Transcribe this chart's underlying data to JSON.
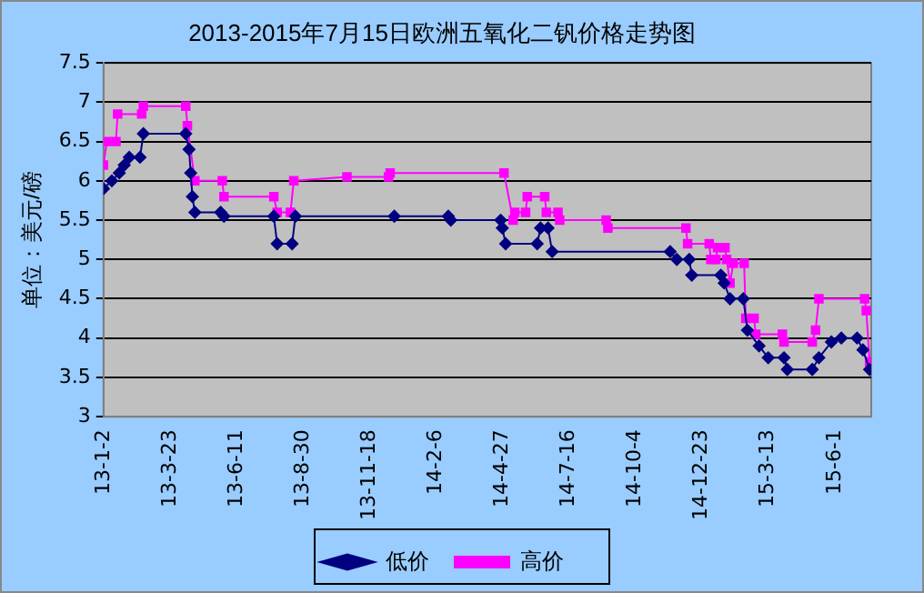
{
  "chart_data": {
    "type": "line",
    "title": "2013-2015年7月15日欧洲五氧化二钒价格走势图",
    "ylabel": "单位：美元/磅",
    "xlim": [
      "2013-01-02",
      "2015-07-15"
    ],
    "xticks": [
      {
        "value": "2013-01-02",
        "label": "13-1-2"
      },
      {
        "value": "2013-03-23",
        "label": "13-3-23"
      },
      {
        "value": "2013-06-11",
        "label": "13-6-11"
      },
      {
        "value": "2013-08-30",
        "label": "13-8-30"
      },
      {
        "value": "2013-11-18",
        "label": "13-11-18"
      },
      {
        "value": "2014-02-06",
        "label": "14-2-6"
      },
      {
        "value": "2014-04-27",
        "label": "14-4-27"
      },
      {
        "value": "2014-07-16",
        "label": "14-7-16"
      },
      {
        "value": "2014-10-04",
        "label": "14-10-4"
      },
      {
        "value": "2014-12-23",
        "label": "14-12-23"
      },
      {
        "value": "2015-03-13",
        "label": "15-3-13"
      },
      {
        "value": "2015-06-01",
        "label": "15-6-1"
      }
    ],
    "ylim": [
      3,
      7.5
    ],
    "yticks": [
      3,
      3.5,
      4,
      4.5,
      5,
      5.5,
      6,
      6.5,
      7,
      7.5
    ],
    "grid": "y",
    "legend": "bottom",
    "series": [
      {
        "name": "低价",
        "color": "#000080",
        "marker": "diamond",
        "x": [
          "2013-01-02",
          "2013-01-12",
          "2013-01-21",
          "2013-01-27",
          "2013-02-02",
          "2013-02-15",
          "2013-02-19",
          "2013-04-11",
          "2013-04-15",
          "2013-04-17",
          "2013-04-19",
          "2013-04-22",
          "2013-05-23",
          "2013-05-27",
          "2013-07-26",
          "2013-07-30",
          "2013-08-17",
          "2013-08-21",
          "2013-12-18",
          "2014-02-21",
          "2014-02-24",
          "2014-04-25",
          "2014-04-27",
          "2014-05-01",
          "2014-06-08",
          "2014-06-12",
          "2014-06-21",
          "2014-06-26",
          "2014-11-15",
          "2014-11-23",
          "2014-12-08",
          "2014-12-11",
          "2015-01-15",
          "2015-01-19",
          "2015-01-26",
          "2015-02-11",
          "2015-02-16",
          "2015-03-02",
          "2015-03-13",
          "2015-04-01",
          "2015-04-05",
          "2015-05-05",
          "2015-05-13",
          "2015-05-28",
          "2015-06-09",
          "2015-06-28",
          "2015-07-05",
          "2015-07-13"
        ],
        "values": [
          5.9,
          6.0,
          6.1,
          6.2,
          6.3,
          6.3,
          6.6,
          6.6,
          6.4,
          6.1,
          5.8,
          5.6,
          5.6,
          5.55,
          5.55,
          5.2,
          5.2,
          5.55,
          5.55,
          5.55,
          5.5,
          5.5,
          5.4,
          5.2,
          5.2,
          5.4,
          5.4,
          5.1,
          5.1,
          5.0,
          5.0,
          4.8,
          4.8,
          4.7,
          4.5,
          4.5,
          4.1,
          3.9,
          3.75,
          3.75,
          3.6,
          3.6,
          3.75,
          3.95,
          4.0,
          4.0,
          3.85,
          3.6
        ]
      },
      {
        "name": "高价",
        "color": "#ff00ff",
        "marker": "square",
        "x": [
          "2013-01-02",
          "2013-01-06",
          "2013-01-17",
          "2013-01-19",
          "2013-02-17",
          "2013-02-19",
          "2013-04-11",
          "2013-04-13",
          "2013-04-22",
          "2013-05-25",
          "2013-05-27",
          "2013-07-26",
          "2013-07-30",
          "2013-08-15",
          "2013-08-19",
          "2013-10-22",
          "2013-12-11",
          "2013-12-13",
          "2014-04-29",
          "2014-05-10",
          "2014-05-12",
          "2014-05-25",
          "2014-05-27",
          "2014-06-17",
          "2014-06-19",
          "2014-07-03",
          "2014-07-05",
          "2014-08-30",
          "2014-09-01",
          "2014-12-04",
          "2014-12-06",
          "2015-01-01",
          "2015-01-03",
          "2015-01-09",
          "2015-01-11",
          "2015-01-20",
          "2015-01-22",
          "2015-01-26",
          "2015-01-30",
          "2015-02-12",
          "2015-02-14",
          "2015-02-24",
          "2015-02-26",
          "2015-03-30",
          "2015-04-01",
          "2015-05-05",
          "2015-05-09",
          "2015-05-13",
          "2015-07-07",
          "2015-07-09",
          "2015-07-13"
        ],
        "values": [
          6.2,
          6.5,
          6.5,
          6.85,
          6.85,
          6.95,
          6.95,
          6.7,
          6.0,
          6.0,
          5.8,
          5.8,
          5.6,
          5.6,
          6.0,
          6.05,
          6.05,
          6.1,
          6.1,
          5.5,
          5.6,
          5.6,
          5.8,
          5.8,
          5.6,
          5.6,
          5.5,
          5.5,
          5.4,
          5.4,
          5.2,
          5.2,
          5.0,
          5.0,
          5.15,
          5.15,
          5.0,
          4.7,
          4.95,
          4.95,
          4.25,
          4.25,
          4.05,
          4.05,
          3.95,
          3.95,
          4.1,
          4.5,
          4.5,
          4.35,
          3.7
        ]
      }
    ]
  }
}
